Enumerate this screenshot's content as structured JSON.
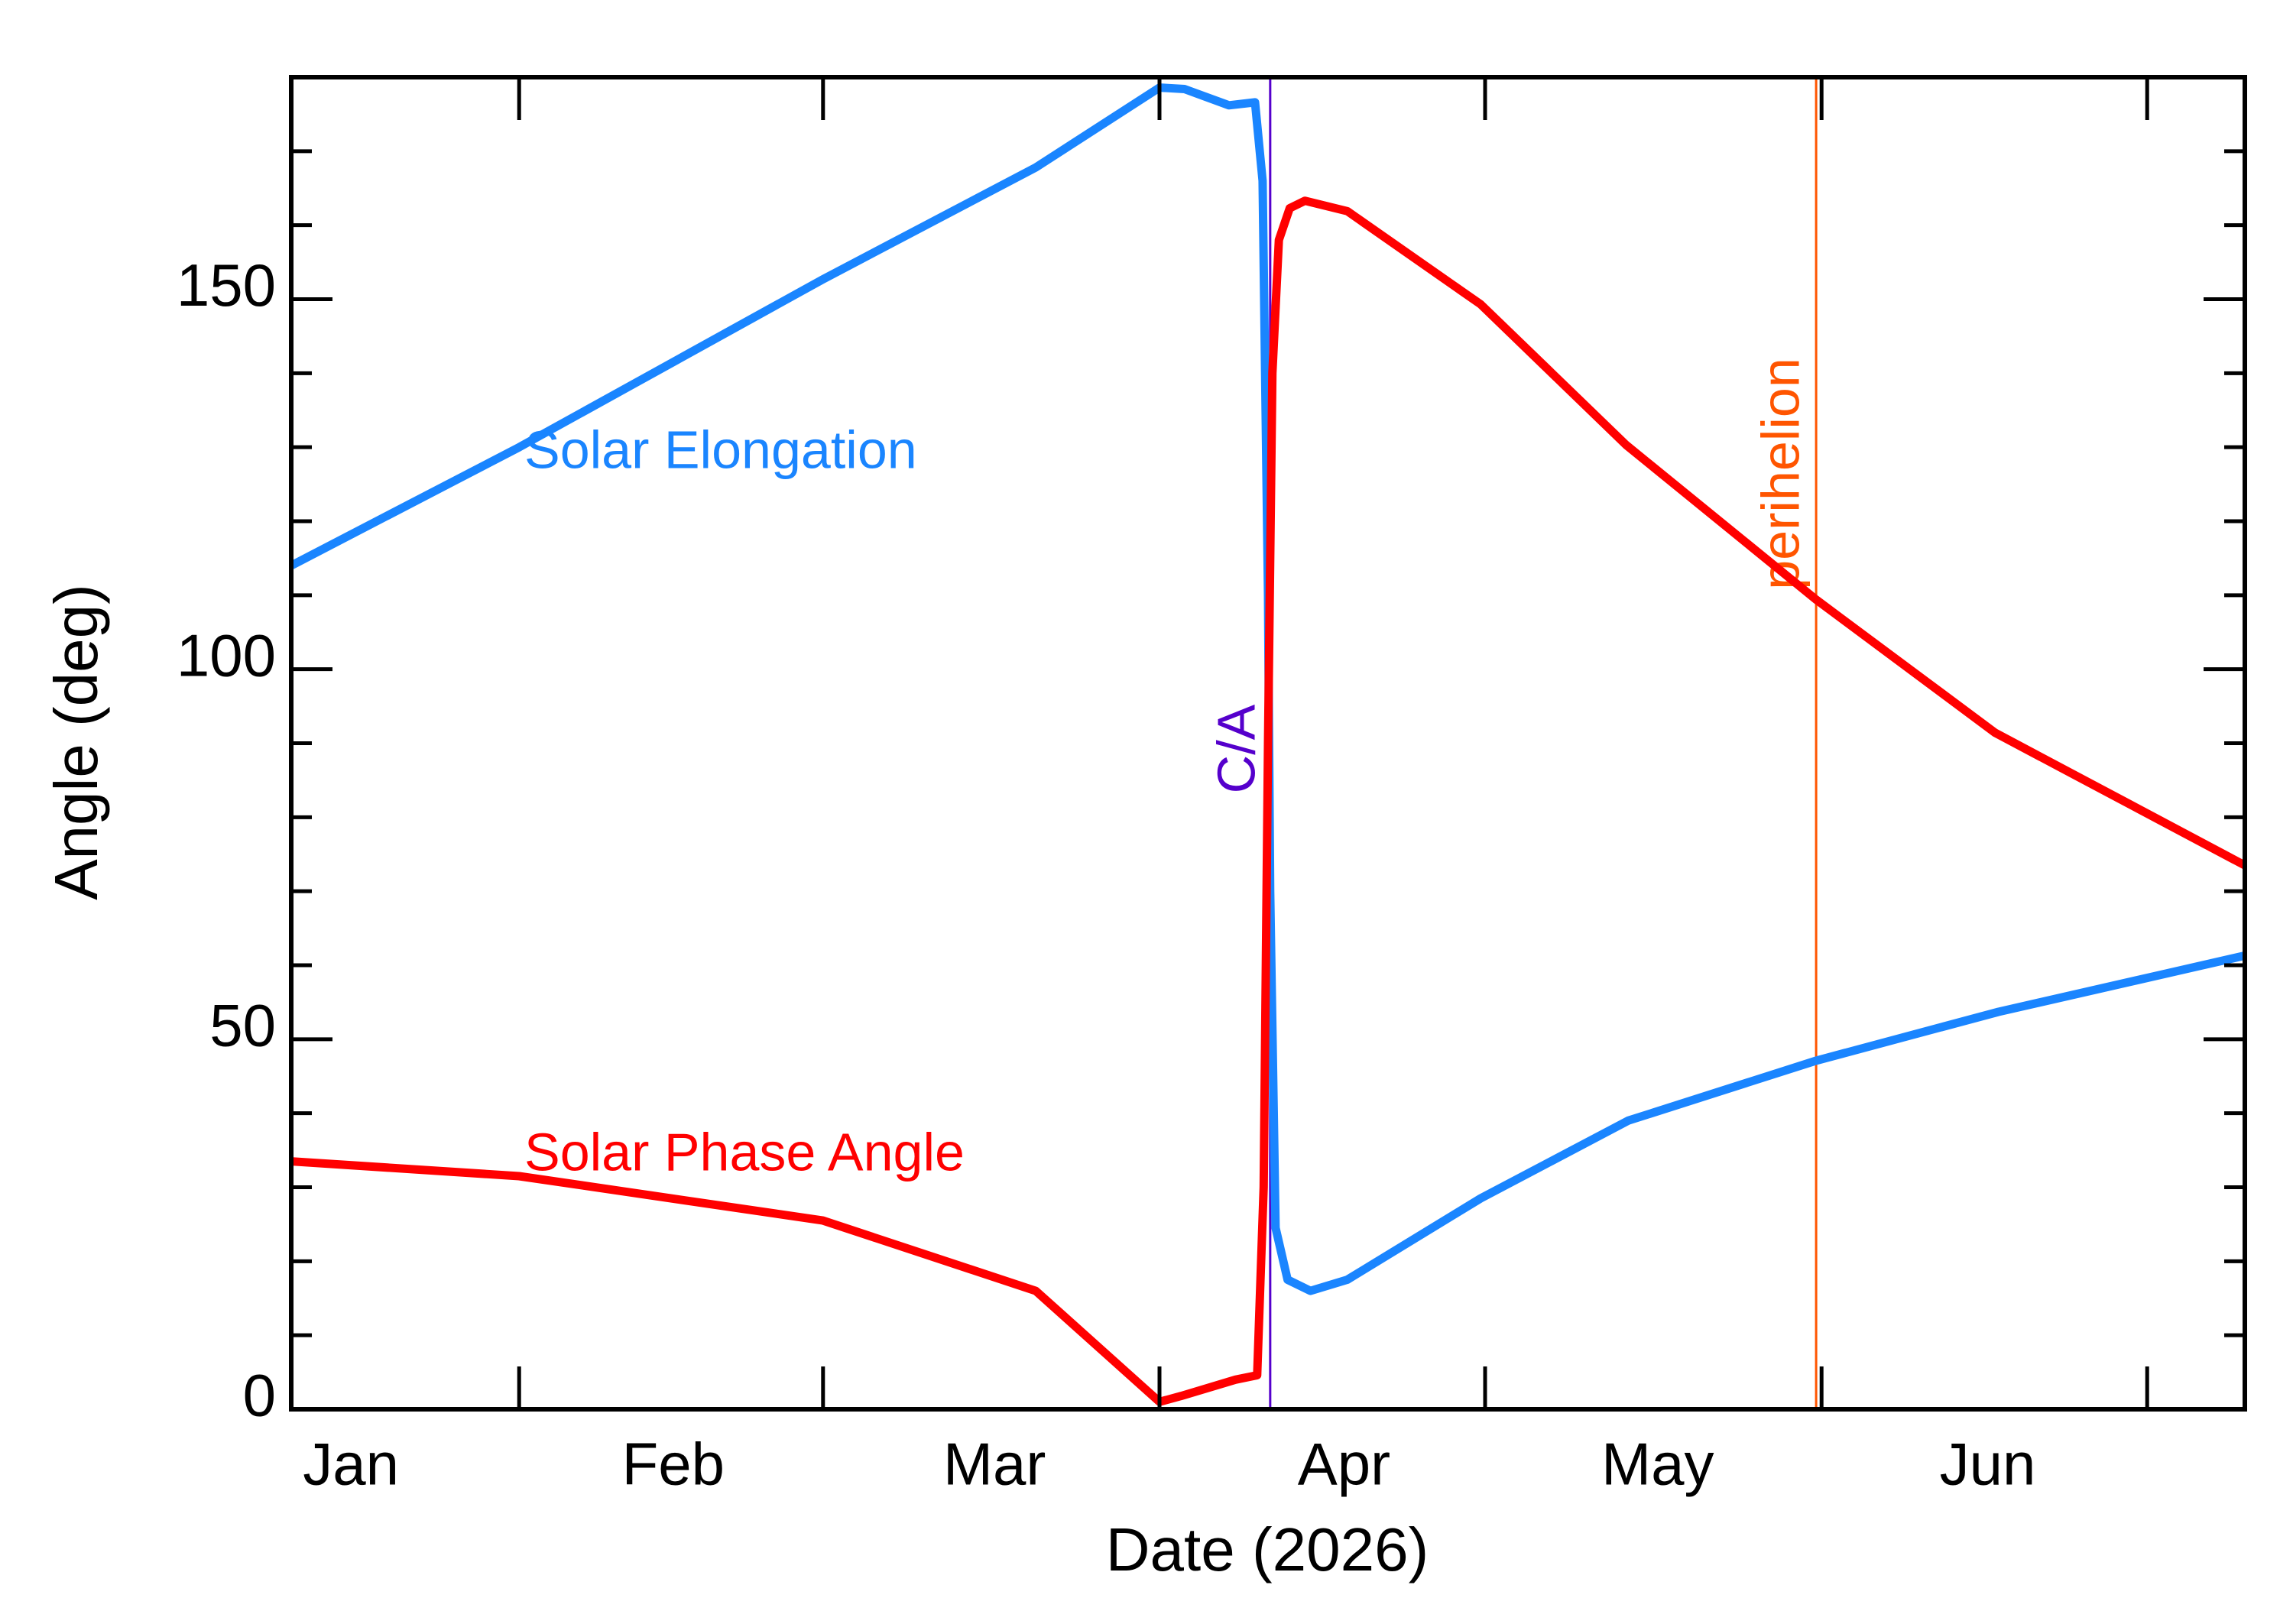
{
  "chart_data": {
    "type": "line",
    "x_label": "Date (2026)",
    "y_label": "Angle (deg)",
    "xlim": [
      10,
      190
    ],
    "xticks": [
      31,
      59,
      90,
      120,
      151,
      181
    ],
    "xtick_labels": [
      {
        "value": 15.5,
        "label": "Jan"
      },
      {
        "value": 45.2,
        "label": "Feb"
      },
      {
        "value": 74.8,
        "label": "Mar"
      },
      {
        "value": 107,
        "label": "Apr"
      },
      {
        "value": 135.9,
        "label": "May"
      },
      {
        "value": 166.3,
        "label": "Jun"
      }
    ],
    "ylim": [
      0,
      180
    ],
    "yticks": [
      0,
      50,
      100,
      150
    ],
    "y_minor_step": 10,
    "series": [
      {
        "name": "Solar Elongation",
        "color": "#1a85ff",
        "x": [
          10,
          31,
          59,
          78.6,
          90,
          92.3,
          96.4,
          98.8,
          99.5,
          100,
          100.2,
          100.7,
          101.8,
          103.9,
          107.3,
          119.6,
          133.2,
          150.5,
          167.3,
          190
        ],
        "values": [
          114,
          130,
          152.7,
          167.8,
          178.6,
          178.4,
          176.2,
          176.6,
          166,
          110,
          70,
          24.5,
          17.5,
          16,
          17.5,
          28.5,
          39,
          47.1,
          53.7,
          61.3
        ]
      },
      {
        "name": "Solar Phase Angle",
        "color": "#ff0000",
        "x": [
          10,
          31,
          59,
          78.6,
          90,
          92,
          97,
          99,
          99.6,
          100,
          100.4,
          101,
          102,
          103.4,
          107.3,
          119.6,
          133,
          150.5,
          167,
          190
        ],
        "values": [
          33.5,
          31.5,
          25.5,
          16,
          1,
          1.8,
          4,
          4.6,
          30,
          90,
          140,
          158,
          162.3,
          163.3,
          161.9,
          149.3,
          130.3,
          109.4,
          91.4,
          73.5
        ]
      }
    ],
    "vlines": [
      {
        "x": 100.2,
        "label": "C/A",
        "color": "#5500cc"
      },
      {
        "x": 150.5,
        "label": "perihelion",
        "color": "#ff5500"
      }
    ]
  }
}
